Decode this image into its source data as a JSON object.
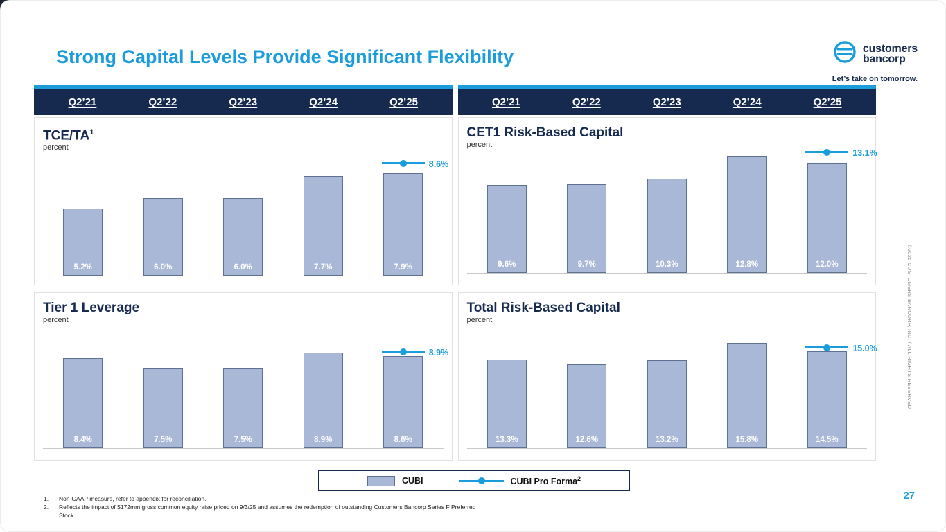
{
  "slide": {
    "title": "Strong Capital Levels Provide Significant Flexibility",
    "page_number": "27",
    "copyright": "©2025 CUSTOMERS BANCORP, INC. / ALL RIGHTS RESERVED",
    "logo": {
      "line1": "customers",
      "line2": "bancorp",
      "tagline": "Let’s take on tomorrow."
    },
    "legend": {
      "cubi_label": "CUBI",
      "pro_forma_label": "CUBI Pro Forma",
      "pro_forma_sup": "2"
    },
    "footnotes": [
      {
        "num": "1.",
        "text": "Non-GAAP measure, refer to appendix for reconciliation."
      },
      {
        "num": "2.",
        "text": "Reflects the impact of $172mm gross common equity raise priced on 9/3/25 and assumes the redemption of outstanding Customers Bancorp Series F Preferred Stock."
      }
    ]
  },
  "columns": [
    "Q2’21",
    "Q2’22",
    "Q2’23",
    "Q2’24",
    "Q2’25"
  ],
  "colors": {
    "accent_blue": "#1B9DDB",
    "navy": "#152A4E",
    "bar_fill": "#A9B8D6",
    "bar_border": "#5E7195"
  },
  "chart_data": [
    {
      "type": "bar",
      "title": "TCE/TA",
      "title_sup": "1",
      "ylabel": "percent",
      "categories": [
        "Q2’21",
        "Q2’22",
        "Q2’23",
        "Q2’24",
        "Q2’25"
      ],
      "values": [
        5.2,
        6.0,
        6.0,
        7.7,
        7.9
      ],
      "labels": [
        "5.2%",
        "6.0%",
        "6.0%",
        "7.7%",
        "7.9%"
      ],
      "pro_forma": 8.6,
      "pro_forma_label": "8.6%",
      "ylim": [
        0,
        9.5
      ]
    },
    {
      "type": "bar",
      "title": "CET1 Risk-Based Capital",
      "ylabel": "percent",
      "categories": [
        "Q2’21",
        "Q2’22",
        "Q2’23",
        "Q2’24",
        "Q2’25"
      ],
      "values": [
        9.6,
        9.7,
        10.3,
        12.8,
        12.0
      ],
      "labels": [
        "9.6%",
        "9.7%",
        "10.3%",
        "12.8%",
        "12.0%"
      ],
      "pro_forma": 13.1,
      "pro_forma_label": "13.1%",
      "ylim": [
        0,
        13.5
      ]
    },
    {
      "type": "bar",
      "title": "Tier 1 Leverage",
      "ylabel": "percent",
      "categories": [
        "Q2’21",
        "Q2’22",
        "Q2’23",
        "Q2’24",
        "Q2’25"
      ],
      "values": [
        8.4,
        7.5,
        7.5,
        8.9,
        8.6
      ],
      "labels": [
        "8.4%",
        "7.5%",
        "7.5%",
        "8.9%",
        "8.6%"
      ],
      "pro_forma": 8.9,
      "pro_forma_label": "8.9%",
      "ylim": [
        0,
        11.5
      ]
    },
    {
      "type": "bar",
      "title": "Total Risk-Based Capital",
      "ylabel": "percent",
      "categories": [
        "Q2’21",
        "Q2’22",
        "Q2’23",
        "Q2’24",
        "Q2’25"
      ],
      "values": [
        13.3,
        12.6,
        13.2,
        15.8,
        14.5
      ],
      "labels": [
        "13.3%",
        "12.6%",
        "13.2%",
        "15.8%",
        "14.5%"
      ],
      "pro_forma": 15.0,
      "pro_forma_label": "15.0%",
      "ylim": [
        0,
        18.5
      ]
    }
  ]
}
